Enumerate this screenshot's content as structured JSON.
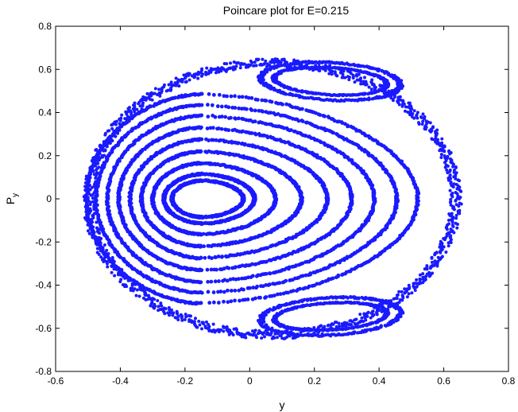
{
  "chart_data": {
    "type": "scatter",
    "title": "Poincare plot for E=0.215",
    "xlabel": "y",
    "ylabel_main": "P",
    "ylabel_sub": "y",
    "xlim": [
      -0.6,
      0.8
    ],
    "ylim": [
      -0.8,
      0.8
    ],
    "xticks": [
      -0.6,
      -0.4,
      -0.2,
      0,
      0.2,
      0.4,
      0.6,
      0.8
    ],
    "xtick_labels": [
      "-0.6",
      "-0.4",
      "-0.2",
      "0",
      "0.2",
      "0.4",
      "0.6",
      "0.8"
    ],
    "yticks": [
      -0.8,
      -0.6,
      -0.4,
      -0.2,
      0,
      0.2,
      0.4,
      0.6,
      0.8
    ],
    "ytick_labels": [
      "-0.8",
      "-0.6",
      "-0.4",
      "-0.2",
      "0",
      "0.2",
      "0.4",
      "0.6",
      "0.8"
    ],
    "grid": false,
    "marker_color": "#1a1aff",
    "series": [
      {
        "shape": "loop",
        "center": [
          -0.145,
          0
        ],
        "left": -0.24,
        "right": -0.02,
        "pmax": 0.085
      },
      {
        "shape": "loop",
        "center": [
          -0.145,
          0
        ],
        "left": -0.265,
        "right": 0.015,
        "pmax": 0.115
      },
      {
        "shape": "loop",
        "center": [
          -0.15,
          0
        ],
        "left": -0.3,
        "right": 0.08,
        "pmax": 0.165
      },
      {
        "shape": "loop",
        "center": [
          -0.15,
          0
        ],
        "left": -0.335,
        "right": 0.16,
        "pmax": 0.22
      },
      {
        "shape": "loop",
        "center": [
          -0.15,
          0
        ],
        "left": -0.37,
        "right": 0.24,
        "pmax": 0.275
      },
      {
        "shape": "loop",
        "center": [
          -0.15,
          0
        ],
        "left": -0.405,
        "right": 0.315,
        "pmax": 0.33
      },
      {
        "shape": "loop",
        "center": [
          -0.15,
          0
        ],
        "left": -0.44,
        "right": 0.385,
        "pmax": 0.385
      },
      {
        "shape": "loop",
        "center": [
          -0.15,
          0
        ],
        "left": -0.475,
        "right": 0.455,
        "pmax": 0.435
      },
      {
        "shape": "loop",
        "center": [
          -0.15,
          0
        ],
        "left": -0.505,
        "right": 0.52,
        "pmax": 0.485
      },
      {
        "shape": "boundary",
        "center": [
          0.07,
          0
        ],
        "rx": 0.585,
        "ry": 0.65
      },
      {
        "shape": "island",
        "center": [
          0.25,
          0.545
        ],
        "rx": 0.19,
        "ry": 0.065,
        "tilt": -0.3
      },
      {
        "shape": "island",
        "center": [
          0.25,
          0.545
        ],
        "rx": 0.235,
        "ry": 0.09,
        "tilt": -0.3
      },
      {
        "shape": "island",
        "center": [
          0.25,
          -0.545
        ],
        "rx": 0.19,
        "ry": 0.065,
        "tilt": 0.3
      },
      {
        "shape": "island",
        "center": [
          0.25,
          -0.545
        ],
        "rx": 0.235,
        "ry": 0.09,
        "tilt": 0.3
      }
    ]
  }
}
